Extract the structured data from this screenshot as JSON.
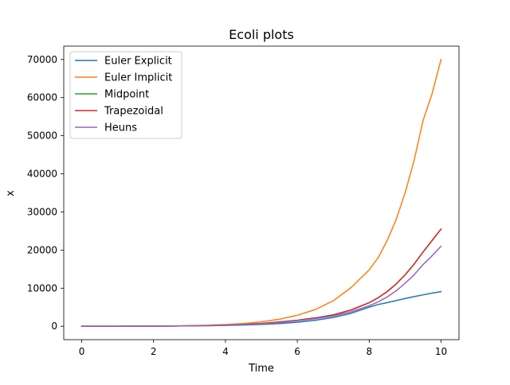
{
  "chart_data": {
    "type": "line",
    "title": "Ecoli plots",
    "xlabel": "Time",
    "ylabel": "x",
    "xlim": [
      -0.5,
      10.5
    ],
    "ylim": [
      -3500,
      73500
    ],
    "xticks": [
      0,
      2,
      4,
      6,
      8,
      10
    ],
    "yticks": [
      0,
      10000,
      20000,
      30000,
      40000,
      50000,
      60000,
      70000
    ],
    "grid": false,
    "legend_position": "top-left",
    "x": [
      0,
      0.5,
      1,
      1.5,
      2,
      2.5,
      3,
      3.5,
      4,
      4.5,
      5,
      5.5,
      6,
      6.5,
      7,
      7.5,
      8,
      8.25,
      8.5,
      8.75,
      9,
      9.25,
      9.5,
      9.75,
      10
    ],
    "series": [
      {
        "name": "Euler Explicit",
        "color": "#1f77b4",
        "values": [
          10,
          15,
          22,
          33,
          49,
          72,
          106,
          156,
          230,
          338,
          497,
          731,
          1074,
          1580,
          2324,
          3418,
          5030,
          5720,
          6200,
          6750,
          7300,
          7800,
          8250,
          8700,
          9100
        ]
      },
      {
        "name": "Euler Implicit",
        "color": "#ff7f0e",
        "values": [
          10,
          16,
          26,
          42,
          67,
          108,
          174,
          281,
          452,
          728,
          1170,
          1880,
          2900,
          4400,
          6700,
          10200,
          14800,
          18000,
          22500,
          28000,
          35000,
          43500,
          54000,
          61000,
          70000
        ]
      },
      {
        "name": "Midpoint",
        "color": "#2ca02c",
        "values": [
          10,
          15,
          23,
          36,
          55,
          85,
          131,
          202,
          312,
          481,
          742,
          1144,
          1600,
          2200,
          3000,
          4300,
          6200,
          7500,
          9100,
          11100,
          13500,
          16300,
          19500,
          22500,
          25500
        ]
      },
      {
        "name": "Trapezoidal",
        "color": "#d62728",
        "values": [
          10,
          15,
          23,
          36,
          55,
          85,
          131,
          202,
          312,
          481,
          742,
          1144,
          1600,
          2200,
          3000,
          4300,
          6200,
          7500,
          9100,
          11100,
          13500,
          16300,
          19500,
          22500,
          25500
        ]
      },
      {
        "name": "Heuns",
        "color": "#9467bd",
        "values": [
          10,
          15,
          22,
          34,
          52,
          79,
          120,
          183,
          280,
          428,
          655,
          1000,
          1450,
          2000,
          2700,
          3800,
          5400,
          6400,
          7700,
          9300,
          11300,
          13500,
          16200,
          18500,
          21000
        ]
      }
    ]
  }
}
